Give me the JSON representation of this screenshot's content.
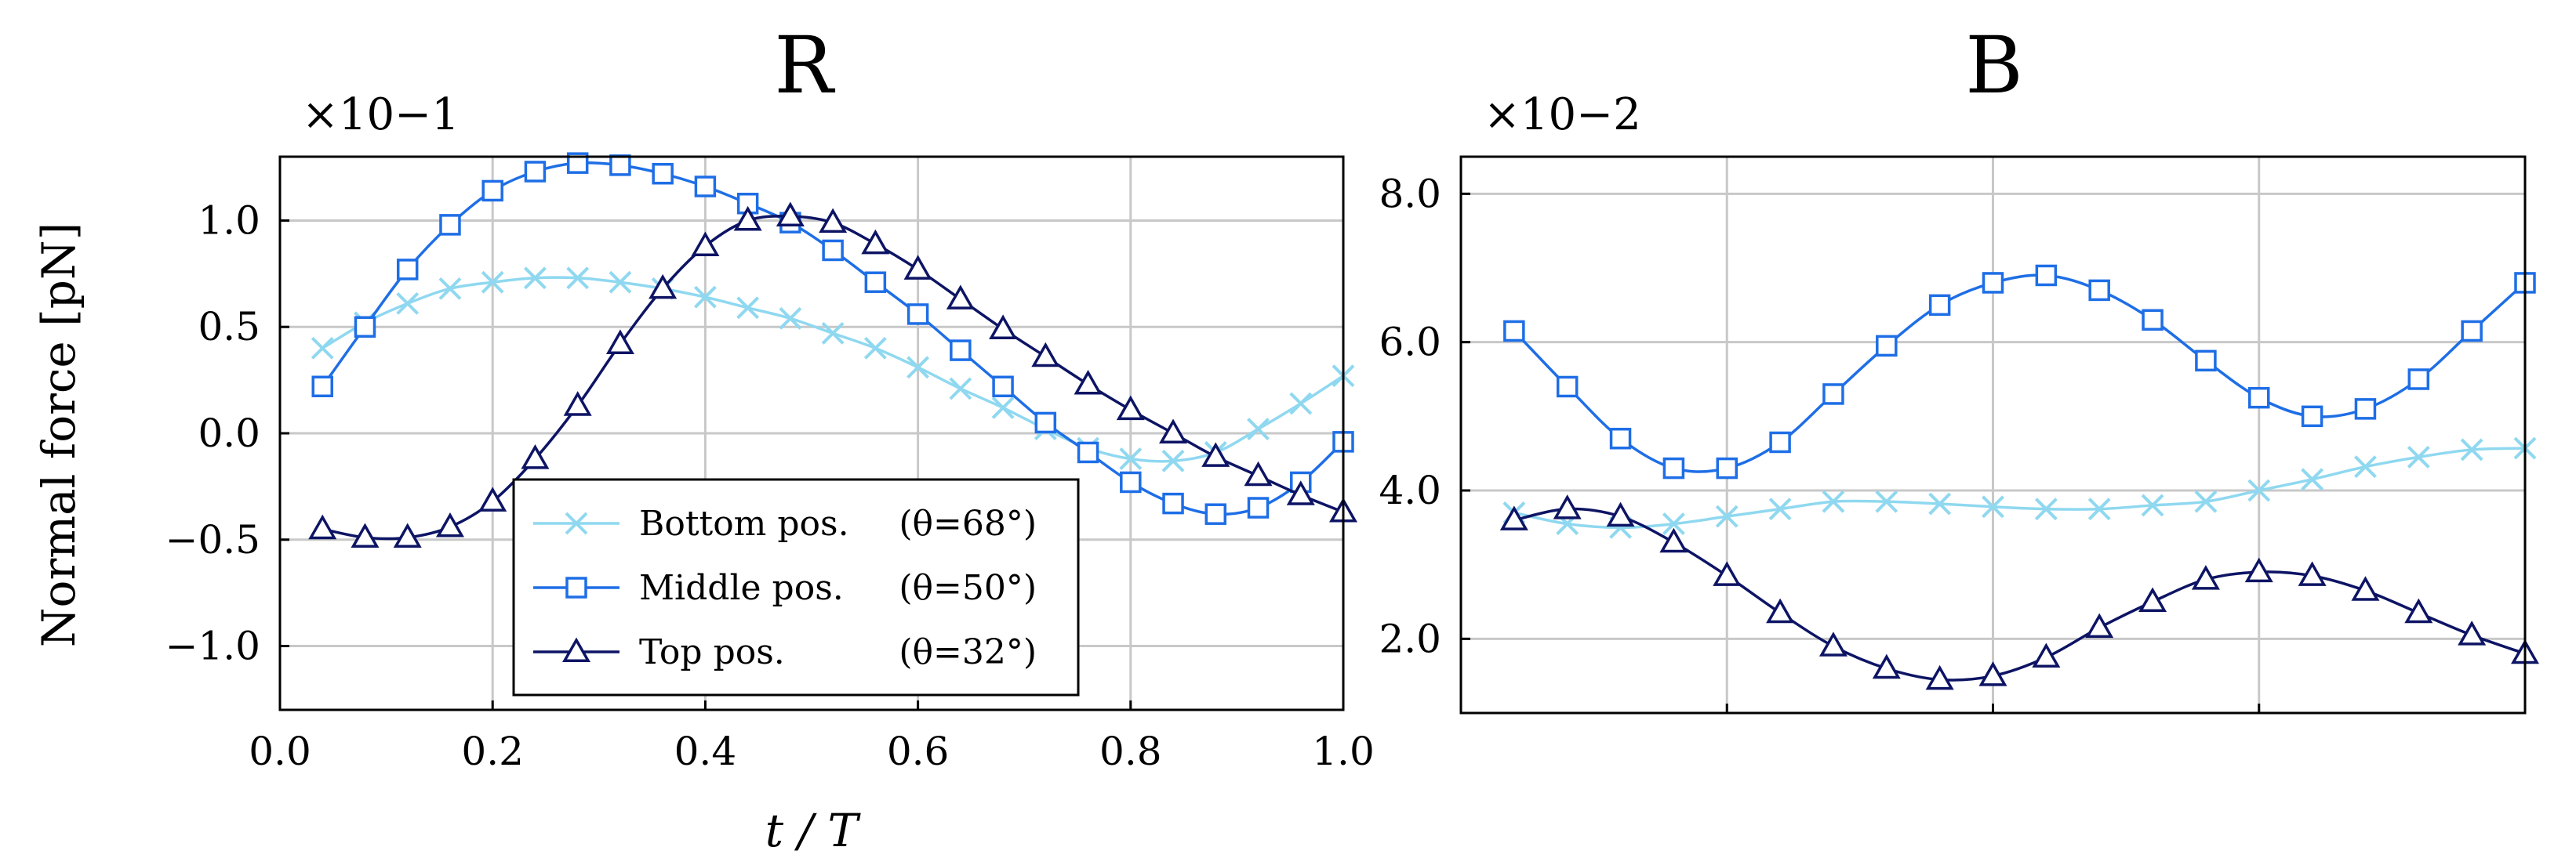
{
  "y_axis_label": "Normal force [pN]",
  "chart_data": [
    {
      "type": "line",
      "title": "R",
      "multiplier": "×10−1",
      "xlabel": "t / T",
      "ylabel": "Normal force [pN]",
      "xlim": [
        0,
        1
      ],
      "ylim": [
        -1.3,
        1.3
      ],
      "grid": true,
      "xticks": [
        0.0,
        0.2,
        0.4,
        0.6,
        0.8,
        1.0
      ],
      "xtick_labels": [
        "0.0",
        "0.2",
        "0.4",
        "0.6",
        "0.8",
        "1.0"
      ],
      "yticks": [
        -1.0,
        -0.5,
        0.0,
        0.5,
        1.0
      ],
      "ytick_labels": [
        "−1.0",
        "−0.5",
        "0.0",
        "0.5",
        "1.0"
      ],
      "x": [
        0.04,
        0.08,
        0.12,
        0.16,
        0.2,
        0.24,
        0.28,
        0.32,
        0.36,
        0.4,
        0.44,
        0.48,
        0.52,
        0.56,
        0.6,
        0.64,
        0.68,
        0.72,
        0.76,
        0.8,
        0.84,
        0.88,
        0.92,
        0.96,
        1.0
      ],
      "series": [
        {
          "name": "Bottom pos.",
          "angle": "(θ=68°)",
          "color": "#8fd8f0",
          "marker": "cross",
          "values": [
            0.4,
            0.52,
            0.61,
            0.68,
            0.71,
            0.73,
            0.73,
            0.71,
            0.68,
            0.64,
            0.59,
            0.54,
            0.47,
            0.4,
            0.31,
            0.21,
            0.12,
            0.02,
            -0.07,
            -0.12,
            -0.13,
            -0.09,
            0.02,
            0.14,
            0.27
          ]
        },
        {
          "name": "Middle pos.",
          "angle": "(θ=50°)",
          "color": "#1e6ee6",
          "marker": "square",
          "values": [
            0.22,
            0.5,
            0.77,
            0.98,
            1.14,
            1.23,
            1.27,
            1.26,
            1.22,
            1.16,
            1.08,
            0.99,
            0.86,
            0.71,
            0.56,
            0.39,
            0.22,
            0.05,
            -0.09,
            -0.23,
            -0.33,
            -0.38,
            -0.35,
            -0.23,
            -0.04
          ]
        },
        {
          "name": "Top pos.",
          "angle": "(θ=32°)",
          "color": "#0d1464",
          "marker": "triangle",
          "values": [
            -0.45,
            -0.49,
            -0.49,
            -0.44,
            -0.32,
            -0.12,
            0.13,
            0.42,
            0.68,
            0.88,
            1.0,
            1.02,
            0.99,
            0.89,
            0.77,
            0.63,
            0.49,
            0.36,
            0.23,
            0.11,
            0.0,
            -0.11,
            -0.2,
            -0.29,
            -0.37
          ]
        }
      ]
    },
    {
      "type": "line",
      "title": "B",
      "multiplier": "×10−2",
      "xlim": [
        0,
        1
      ],
      "ylim": [
        1.0,
        8.5
      ],
      "grid": true,
      "xticks": [
        0.0,
        0.25,
        0.5,
        0.75,
        1.0
      ],
      "yticks": [
        2.0,
        4.0,
        6.0,
        8.0
      ],
      "ytick_labels": [
        "2.0",
        "4.0",
        "6.0",
        "8.0"
      ],
      "x": [
        0.05,
        0.1,
        0.15,
        0.2,
        0.25,
        0.3,
        0.35,
        0.4,
        0.45,
        0.5,
        0.55,
        0.6,
        0.65,
        0.7,
        0.75,
        0.8,
        0.85,
        0.9,
        0.95,
        1.0
      ],
      "series": [
        {
          "name": "Bottom pos.",
          "color": "#8fd8f0",
          "marker": "cross",
          "values": [
            3.7,
            3.55,
            3.5,
            3.55,
            3.65,
            3.75,
            3.85,
            3.85,
            3.82,
            3.78,
            3.75,
            3.75,
            3.8,
            3.85,
            4.0,
            4.15,
            4.32,
            4.45,
            4.55,
            4.57
          ]
        },
        {
          "name": "Middle pos.",
          "color": "#1e6ee6",
          "marker": "square",
          "values": [
            6.15,
            5.4,
            4.7,
            4.3,
            4.3,
            4.65,
            5.3,
            5.95,
            6.5,
            6.8,
            6.9,
            6.7,
            6.3,
            5.75,
            5.25,
            5.0,
            5.1,
            5.5,
            6.15,
            6.8
          ]
        },
        {
          "name": "Top pos.",
          "color": "#0d1464",
          "marker": "triangle",
          "values": [
            3.6,
            3.75,
            3.65,
            3.3,
            2.85,
            2.35,
            1.9,
            1.6,
            1.45,
            1.5,
            1.75,
            2.15,
            2.5,
            2.8,
            2.9,
            2.85,
            2.65,
            2.35,
            2.05,
            1.8
          ]
        }
      ]
    }
  ]
}
